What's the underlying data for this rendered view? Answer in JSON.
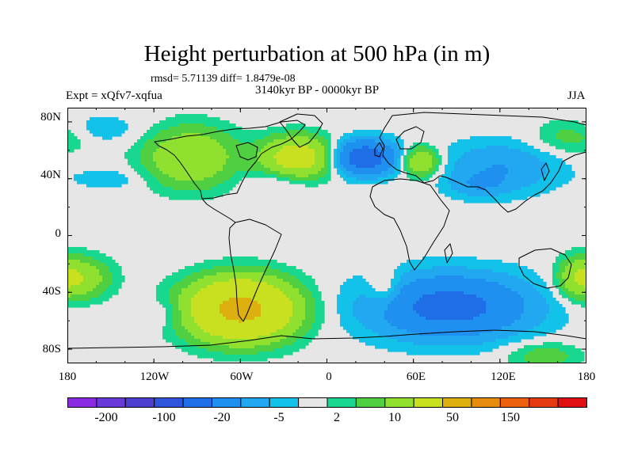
{
  "title": "Height perturbation at 500 hPa (in m)",
  "stats": "rmsd= 5.71139 diff= 1.8479e-08",
  "period": "3140kyr BP - 0000kyr BP",
  "experiment": "Expt = xQfv7-xqfua",
  "season": "JJA",
  "lat_labels": [
    "80N",
    "40N",
    "0",
    "40S",
    "80S"
  ],
  "lon_labels": [
    "180",
    "120W",
    "60W",
    "0",
    "60E",
    "120E",
    "180"
  ],
  "colorbar": {
    "colors": [
      "#8a2be2",
      "#6a3ad8",
      "#4b40d0",
      "#2f55dc",
      "#1e6ee8",
      "#1f8ff0",
      "#22a8f0",
      "#12c2e8",
      "#e6e6e6",
      "#18d890",
      "#50d040",
      "#90e030",
      "#c8e020",
      "#ddb010",
      "#e88c10",
      "#ec6010",
      "#e83a10",
      "#e01010"
    ],
    "labels": [
      "-200",
      "-100",
      "-20",
      "-5",
      "2",
      "10",
      "50",
      "150"
    ]
  },
  "chart_data": {
    "type": "heatmap",
    "title": "Height perturbation at 500 hPa (in m)",
    "subtitle": "3140kyr BP - 0000kyr BP",
    "units": "m",
    "x_range": [
      -180,
      180
    ],
    "y_range": [
      -90,
      90
    ],
    "field_blobs": [
      {
        "lon": -95,
        "lat": 55,
        "value": 20,
        "rlon": 30,
        "rlat": 20
      },
      {
        "lon": -20,
        "lat": 55,
        "value": 30,
        "rlon": 25,
        "rlat": 14
      },
      {
        "lon": 25,
        "lat": 55,
        "value": -30,
        "rlon": 22,
        "rlat": 12
      },
      {
        "lon": 65,
        "lat": 52,
        "value": 20,
        "rlon": 12,
        "rlat": 10
      },
      {
        "lon": -160,
        "lat": 75,
        "value": -5,
        "rlon": 30,
        "rlat": 10
      },
      {
        "lon": 120,
        "lat": 48,
        "value": -10,
        "rlon": 40,
        "rlat": 18
      },
      {
        "lon": 170,
        "lat": 70,
        "value": 8,
        "rlon": 25,
        "rlat": 12
      },
      {
        "lon": -150,
        "lat": 40,
        "value": -4,
        "rlon": 25,
        "rlat": 8
      },
      {
        "lon": -35,
        "lat": 38,
        "value": -5,
        "rlon": 22,
        "rlat": 8
      },
      {
        "lon": 105,
        "lat": 35,
        "value": -6,
        "rlon": 20,
        "rlat": 8
      },
      {
        "lon": -60,
        "lat": -52,
        "value": 60,
        "rlon": 35,
        "rlat": 20
      },
      {
        "lon": -170,
        "lat": -30,
        "value": 15,
        "rlon": 20,
        "rlat": 14
      },
      {
        "lon": 175,
        "lat": -30,
        "value": 15,
        "rlon": 15,
        "rlat": 14
      },
      {
        "lon": 85,
        "lat": -50,
        "value": -25,
        "rlon": 55,
        "rlat": 22
      },
      {
        "lon": 40,
        "lat": -38,
        "value": 8,
        "rlon": 12,
        "rlat": 14
      },
      {
        "lon": 150,
        "lat": -85,
        "value": 8,
        "rlon": 25,
        "rlat": 10
      },
      {
        "lon": -110,
        "lat": -55,
        "value": -5,
        "rlon": 20,
        "rlat": 10
      }
    ]
  }
}
